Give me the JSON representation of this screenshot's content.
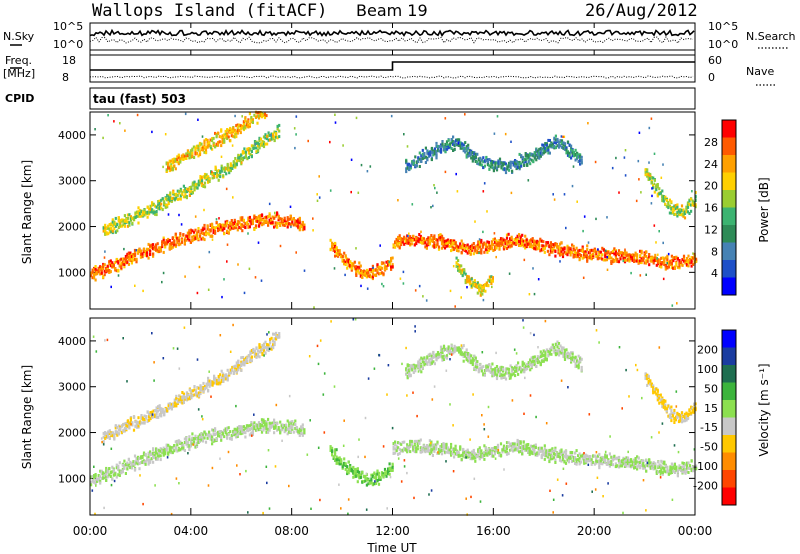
{
  "header": {
    "station": "Wallops Island (fitACF)",
    "beam": "Beam 19",
    "date": "26/Aug/2012"
  },
  "strip": {
    "nsky_label": "N.Sky",
    "nsearch_label": "N.Search",
    "nsky_ticks": [
      "10^5",
      "10^0"
    ],
    "nsearch_ticks": [
      "10^5",
      "10^0"
    ],
    "freq_label": "Freq.",
    "freq_unit": "[MHz]",
    "freq_ticks": [
      "18",
      "8"
    ],
    "nave_label": "Nave",
    "nave_ticks": [
      "60",
      "0"
    ],
    "cpid_label": "CPID",
    "cpid_value": "tau (fast) 503"
  },
  "chart_data": [
    {
      "type": "heatmap",
      "name": "power",
      "ylabel": "Slant Range [km]",
      "yticks": [
        "4000",
        "3000",
        "2000",
        "1000"
      ],
      "ylim": [
        200,
        4500
      ],
      "xlim": [
        0,
        24
      ],
      "colorbar_label": "Power [dB]",
      "colorbar_ticks": [
        "28",
        "24",
        "20",
        "16",
        "12",
        "8",
        "4"
      ],
      "colorbar_colors": [
        "#ff0000",
        "#ff5a00",
        "#ffa000",
        "#ffd000",
        "#9acd32",
        "#3cb371",
        "#2e8b57",
        "#4682b4",
        "#1e50c8",
        "#0000ff"
      ],
      "bands": [
        {
          "t": [
            0,
            1,
            2,
            3,
            4,
            5,
            6,
            7,
            8,
            8.5
          ],
          "r": [
            950,
            1150,
            1400,
            1600,
            1800,
            1950,
            2050,
            2150,
            2100,
            2000
          ],
          "value": 26
        },
        {
          "t": [
            0.5,
            1.5,
            2.5,
            3.5,
            4.5,
            5.5,
            6.5,
            7.5
          ],
          "r": [
            1900,
            2150,
            2400,
            2700,
            3000,
            3300,
            3700,
            4100
          ],
          "value": 18
        },
        {
          "t": [
            3,
            4,
            5,
            6,
            6.5,
            7
          ],
          "r": [
            3300,
            3600,
            3900,
            4150,
            4400,
            4500
          ],
          "value": 22
        },
        {
          "t": [
            9.5,
            10,
            10.5,
            11,
            11.5,
            12
          ],
          "r": [
            1600,
            1300,
            1100,
            950,
            1050,
            1250
          ],
          "value": 25
        },
        {
          "t": [
            12,
            13,
            14,
            15,
            16,
            17,
            18,
            19,
            20,
            21,
            22,
            23,
            24
          ],
          "r": [
            1650,
            1700,
            1650,
            1500,
            1600,
            1700,
            1550,
            1450,
            1400,
            1350,
            1300,
            1200,
            1250
          ],
          "value": 26
        },
        {
          "t": [
            14.5,
            15,
            15.5,
            16
          ],
          "r": [
            1200,
            800,
            600,
            900
          ],
          "value": 20
        },
        {
          "t": [
            12.5,
            13.5,
            14.5,
            15.5,
            16.5,
            17.5,
            18.5,
            19.5
          ],
          "r": [
            3300,
            3600,
            3850,
            3400,
            3300,
            3500,
            3850,
            3450
          ],
          "value": 10
        },
        {
          "t": [
            22,
            22.5,
            23,
            23.5,
            24
          ],
          "r": [
            3200,
            2800,
            2400,
            2300,
            2600
          ],
          "value": 18
        }
      ]
    },
    {
      "type": "heatmap",
      "name": "velocity",
      "ylabel": "Slant Range [km]",
      "yticks": [
        "4000",
        "3000",
        "2000",
        "1000"
      ],
      "ylim": [
        200,
        4500
      ],
      "xlim": [
        0,
        24
      ],
      "xlabel": "Time UT",
      "xticks": [
        "00:00",
        "04:00",
        "08:00",
        "12:00",
        "16:00",
        "20:00",
        "00:00"
      ],
      "colorbar_label": "Velocity [m s⁻¹]",
      "colorbar_ticks": [
        "200",
        "100",
        "50",
        "15",
        "-15",
        "-50",
        "-100",
        "-200"
      ],
      "colorbar_colors": [
        "#0000ff",
        "#1a3ca0",
        "#1e6e50",
        "#3cb43c",
        "#8ce050",
        "#c8c8c8",
        "#ffc800",
        "#ff8c00",
        "#ff4600",
        "#ff0000"
      ],
      "bands": [
        {
          "t": [
            0,
            1,
            2,
            3,
            4,
            5,
            6,
            7,
            8,
            8.5
          ],
          "r": [
            950,
            1150,
            1400,
            1600,
            1800,
            1950,
            2050,
            2150,
            2100,
            2000
          ],
          "value": 0
        },
        {
          "t": [
            0.5,
            1.5,
            2.5,
            3.5,
            4.5,
            5.5,
            6.5,
            7.5
          ],
          "r": [
            1900,
            2150,
            2400,
            2700,
            3000,
            3300,
            3700,
            4100
          ],
          "value": -40
        },
        {
          "t": [
            9.5,
            10,
            10.5,
            11,
            11.5,
            12
          ],
          "r": [
            1600,
            1300,
            1100,
            950,
            1050,
            1250
          ],
          "value": 40
        },
        {
          "t": [
            12,
            13,
            14,
            15,
            16,
            17,
            18,
            19,
            20,
            21,
            22,
            23,
            24
          ],
          "r": [
            1650,
            1700,
            1650,
            1500,
            1600,
            1700,
            1550,
            1450,
            1400,
            1350,
            1300,
            1200,
            1250
          ],
          "value": 0
        },
        {
          "t": [
            12.5,
            13.5,
            14.5,
            15.5,
            16.5,
            17.5,
            18.5,
            19.5
          ],
          "r": [
            3300,
            3600,
            3850,
            3400,
            3300,
            3500,
            3850,
            3450
          ],
          "value": 0
        },
        {
          "t": [
            22,
            22.5,
            23,
            23.5,
            24
          ],
          "r": [
            3200,
            2800,
            2400,
            2300,
            2600
          ],
          "value": -60
        }
      ]
    }
  ]
}
